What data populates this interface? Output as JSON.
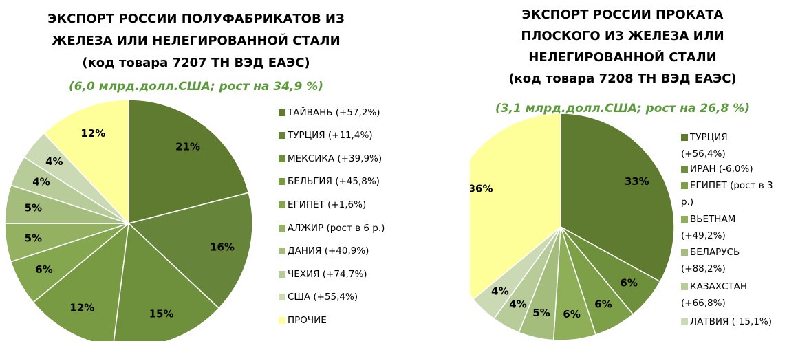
{
  "chart_data": [
    {
      "type": "pie",
      "title": [
        "ЭКСПОРТ  РОССИИ  ПОЛУФАБРИКАТОВ ИЗ",
        "ЖЕЛЕЗА ИЛИ НЕЛЕГИРОВАННОЙ СТАЛИ",
        "(код товара 7207 ТН ВЭД ЕАЭС)"
      ],
      "subtitle": "(6,0 млрд.долл.США; рост на 34,9 %)",
      "categories": [
        "ТАЙВАНЬ (+57,2%)",
        "ТУРЦИЯ (+11,4%)",
        "МЕКСИКА (+39,9%)",
        "БЕЛЬГИЯ (+45,8%)",
        "ЕГИПЕТ (+1,6%)",
        "АЛЖИР (рост в 6 р.)",
        "ДАНИЯ (+40,9%)",
        "ЧЕХИЯ (+74,7%)",
        "США (+55,4%)",
        "ПРОЧИЕ"
      ],
      "values": [
        21,
        16,
        15,
        12,
        6,
        5,
        5,
        4,
        4,
        12
      ],
      "value_labels": [
        "21%",
        "16%",
        "15%",
        "12%",
        "6%",
        "5%",
        "5%",
        "4%",
        "4%",
        "12%"
      ],
      "colors": [
        "#5e7b30",
        "#66853a",
        "#6e8f3c",
        "#779a42",
        "#84a64e",
        "#93b160",
        "#a4bd7c",
        "#b8cc9a",
        "#cbd9b5",
        "#ffff99"
      ]
    },
    {
      "type": "pie",
      "title": [
        "ЭКСПОРТ  РОССИИ  ПРОКАТА",
        "ПЛОСКОГО ИЗ ЖЕЛЕЗА ИЛИ",
        "НЕЛЕГИРОВАННОЙ СТАЛИ",
        "(код товара 7208 ТН ВЭД ЕАЭС)"
      ],
      "subtitle": "(3,1 млрд.долл.США; рост на 26,8 %)",
      "categories": [
        "ТУРЦИЯ (+56,4%)",
        "ИРАН (-6,0%)",
        "ЕГИПЕТ (рост в 3 р.)",
        "ВЬЕТНАМ (+49,2%)",
        "БЕЛАРУСЬ (+88,2%)",
        "КАЗАХСТАН (+66,8%)",
        "ЛАТВИЯ (-15,1%)",
        null
      ],
      "values": [
        33,
        6,
        6,
        6,
        5,
        4,
        4,
        36
      ],
      "value_labels": [
        "33%",
        "6%",
        "6%",
        "6%",
        "5%",
        "4%",
        "4%",
        "36%"
      ],
      "colors": [
        "#5e7b30",
        "#6e8f3c",
        "#7d9f47",
        "#8eae58",
        "#a4bd7c",
        "#b8cc9a",
        "#cbd9b5",
        "#ffff99"
      ]
    }
  ]
}
